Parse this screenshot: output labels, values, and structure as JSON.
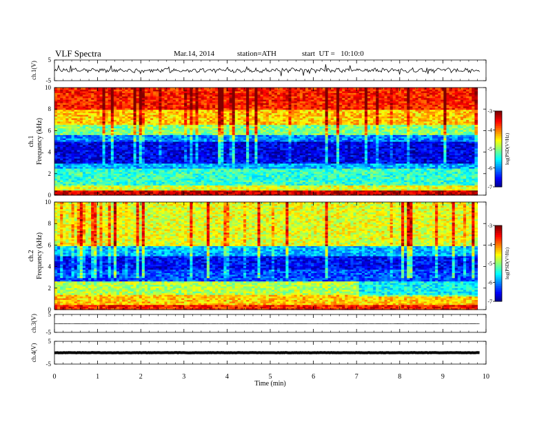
{
  "header": {
    "title": "VLF Spectra",
    "date": "Mar.14, 2014",
    "station": "station=ATH",
    "start": "start  UT =   10:10:0"
  },
  "chart_data": [
    {
      "type": "line",
      "panel": "ch1-waveform",
      "ylabel": "ch.1(V)",
      "ylim": [
        -5,
        5
      ],
      "y_ticks": [
        "5",
        "-5"
      ],
      "series": [
        {
          "values_desc": "noisy waveform around 0",
          "mean": 0
        }
      ],
      "xlim": [
        0,
        10
      ]
    },
    {
      "type": "heatmap",
      "panel": "ch1-spectrogram",
      "ylabel_line1": "ch.1",
      "ylabel_line2": "Frequency  (kHz)",
      "ylim": [
        0,
        10
      ],
      "y_ticks": [
        "0",
        "2",
        "4",
        "6",
        "8",
        "10"
      ],
      "xlim": [
        0,
        9.8
      ],
      "colorbar": {
        "label": "log(PSD(V²/Hz)",
        "range": [
          -7,
          -3
        ],
        "ticks": [
          "-3",
          "-4",
          "-5",
          "-6",
          "-7"
        ]
      },
      "bands_logpsd": [
        {
          "f": [
            0,
            0.5
          ],
          "v": -3.3
        },
        {
          "f": [
            0.5,
            1.0
          ],
          "v": -4.6
        },
        {
          "f": [
            1.0,
            2.5
          ],
          "v": -5.3
        },
        {
          "f": [
            2.5,
            3.0
          ],
          "v": -5.8
        },
        {
          "f": [
            3.0,
            5.0
          ],
          "v": -6.6
        },
        {
          "f": [
            5.0,
            5.6
          ],
          "v": -6.0
        },
        {
          "f": [
            5.6,
            6.5
          ],
          "v": -5.0
        },
        {
          "f": [
            6.5,
            8.0
          ],
          "v": -4.3
        },
        {
          "f": [
            8.0,
            10.0
          ],
          "v": -3.6
        }
      ]
    },
    {
      "type": "heatmap",
      "panel": "ch2-spectrogram",
      "ylabel_line1": "ch.2",
      "ylabel_line2": "Frequency  (kHz)",
      "ylim": [
        0,
        10
      ],
      "y_ticks": [
        "0",
        "2",
        "4",
        "6",
        "8",
        "10"
      ],
      "xlim": [
        0,
        9.8
      ],
      "colorbar": {
        "label": "log(PSD(V²/Hz)",
        "range": [
          -7,
          -3
        ],
        "ticks": [
          "-3",
          "-4",
          "-5",
          "-6",
          "-7"
        ]
      },
      "bands_logpsd": [
        {
          "f": [
            0,
            0.4
          ],
          "v": -3.6
        },
        {
          "f": [
            0.4,
            1.4
          ],
          "v": -4.3
        },
        {
          "f": [
            1.4,
            2.6
          ],
          "v": -4.8
        },
        {
          "f": [
            2.6,
            3.8
          ],
          "v": -6.2
        },
        {
          "f": [
            3.8,
            5.0
          ],
          "v": -6.5
        },
        {
          "f": [
            5.0,
            6.0
          ],
          "v": -5.8
        },
        {
          "f": [
            6.0,
            10.0
          ],
          "v": -4.6
        }
      ]
    },
    {
      "type": "line",
      "panel": "ch3-waveform",
      "ylabel": "ch.3(V)",
      "ylim": [
        -5,
        5
      ],
      "y_ticks": [
        "5",
        "-5"
      ],
      "series": [
        {
          "values_desc": "flat line",
          "mean": 0
        }
      ],
      "xlim": [
        0,
        10
      ]
    },
    {
      "type": "line",
      "panel": "ch4-waveform",
      "ylabel": "ch.4(V)",
      "ylim": [
        -5,
        5
      ],
      "y_ticks": [
        "5",
        "-5"
      ],
      "series": [
        {
          "values_desc": "thick flat line",
          "mean": 0
        }
      ],
      "xlim": [
        0,
        10
      ]
    }
  ],
  "xaxis": {
    "label": "Time  (min)",
    "ticks": [
      "0",
      "1",
      "2",
      "3",
      "4",
      "5",
      "6",
      "7",
      "8",
      "9",
      "10"
    ]
  }
}
